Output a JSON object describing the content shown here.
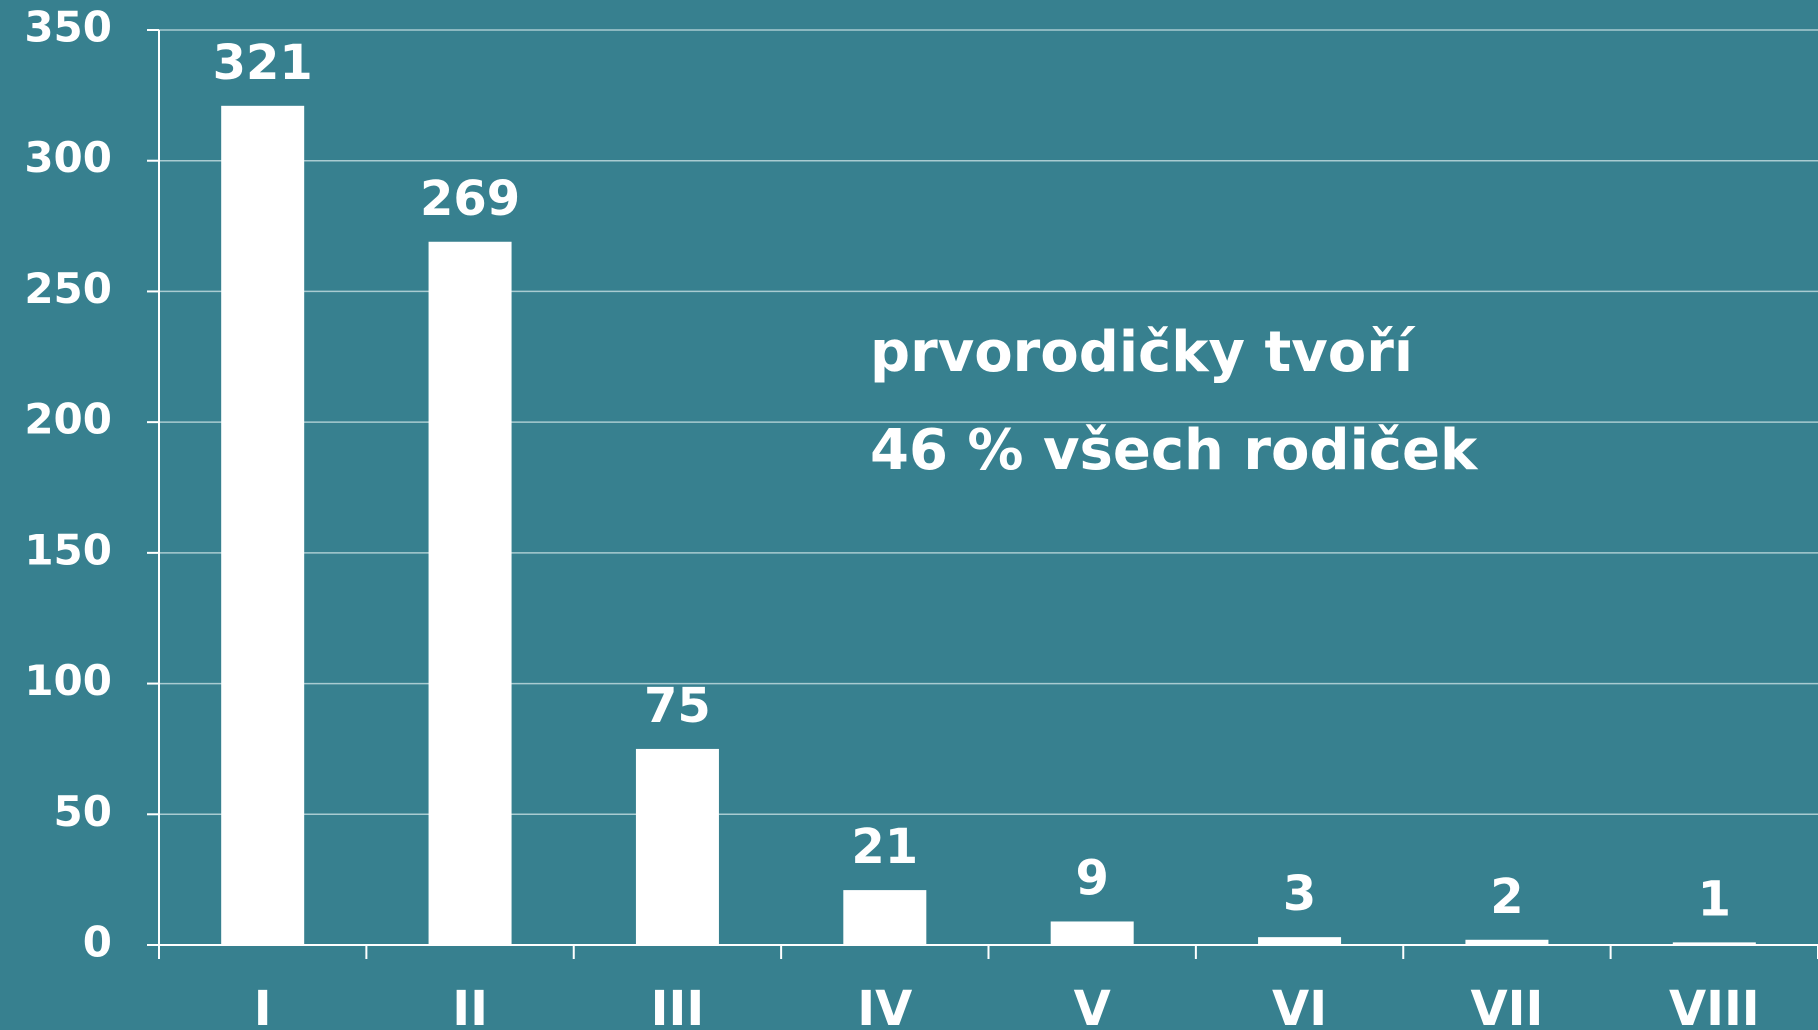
{
  "chart_data": {
    "type": "bar",
    "categories": [
      "I",
      "II",
      "III",
      "IV",
      "V",
      "VI",
      "VII",
      "VIII"
    ],
    "values": [
      321,
      269,
      75,
      21,
      9,
      3,
      2,
      1
    ],
    "color": "#ffffff",
    "ylim": [
      0,
      350
    ],
    "yticks": [
      0,
      50,
      100,
      150,
      200,
      250,
      300,
      350
    ],
    "grid": true,
    "annotations": [
      "prvorodičky tvoří",
      "46 % všech rodiček"
    ]
  }
}
